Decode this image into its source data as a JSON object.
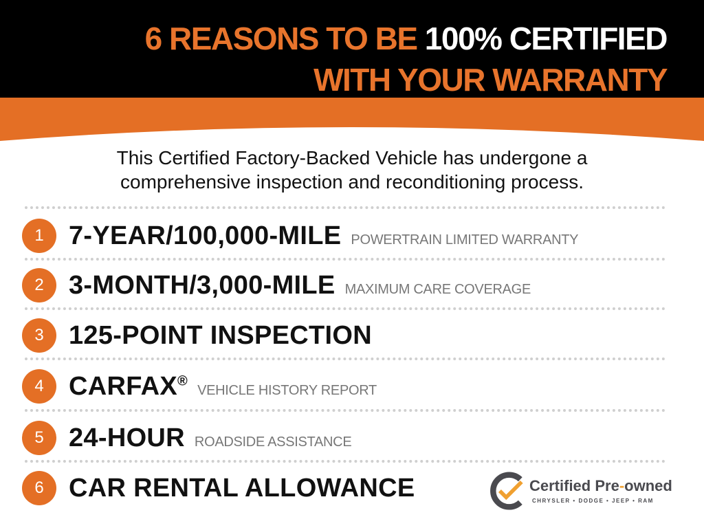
{
  "header": {
    "title_line1_orange": "6 REASONS TO BE",
    "title_line1_white": "100% CERTIFIED",
    "title_line2": "WITH YOUR WARRANTY"
  },
  "intro": {
    "line1": "This Certified Factory-Backed Vehicle has undergone a",
    "line2": "comprehensive inspection and reconditioning process."
  },
  "reasons": [
    {
      "num": "1",
      "main": "7-YEAR/100,000-MILE",
      "sub": "POWERTRAIN LIMITED WARRANTY"
    },
    {
      "num": "2",
      "main": "3-MONTH/3,000-MILE",
      "sub": "MAXIMUM CARE COVERAGE"
    },
    {
      "num": "3",
      "main": "125-POINT INSPECTION",
      "sub": ""
    },
    {
      "num": "4",
      "main": "CARFAX",
      "mark": "®",
      "sub": "VEHICLE HISTORY REPORT"
    },
    {
      "num": "5",
      "main": "24-HOUR",
      "sub": "ROADSIDE ASSISTANCE"
    },
    {
      "num": "6",
      "main": "CAR RENTAL ALLOWANCE",
      "sub": ""
    }
  ],
  "logo": {
    "text_a": "Certified Pre",
    "text_dash": "-",
    "text_b": "owned",
    "brands": "CHRYSLER • DODGE • JEEP • RAM"
  },
  "colors": {
    "orange": "#e46f25",
    "black": "#000000",
    "gray": "#777777"
  }
}
